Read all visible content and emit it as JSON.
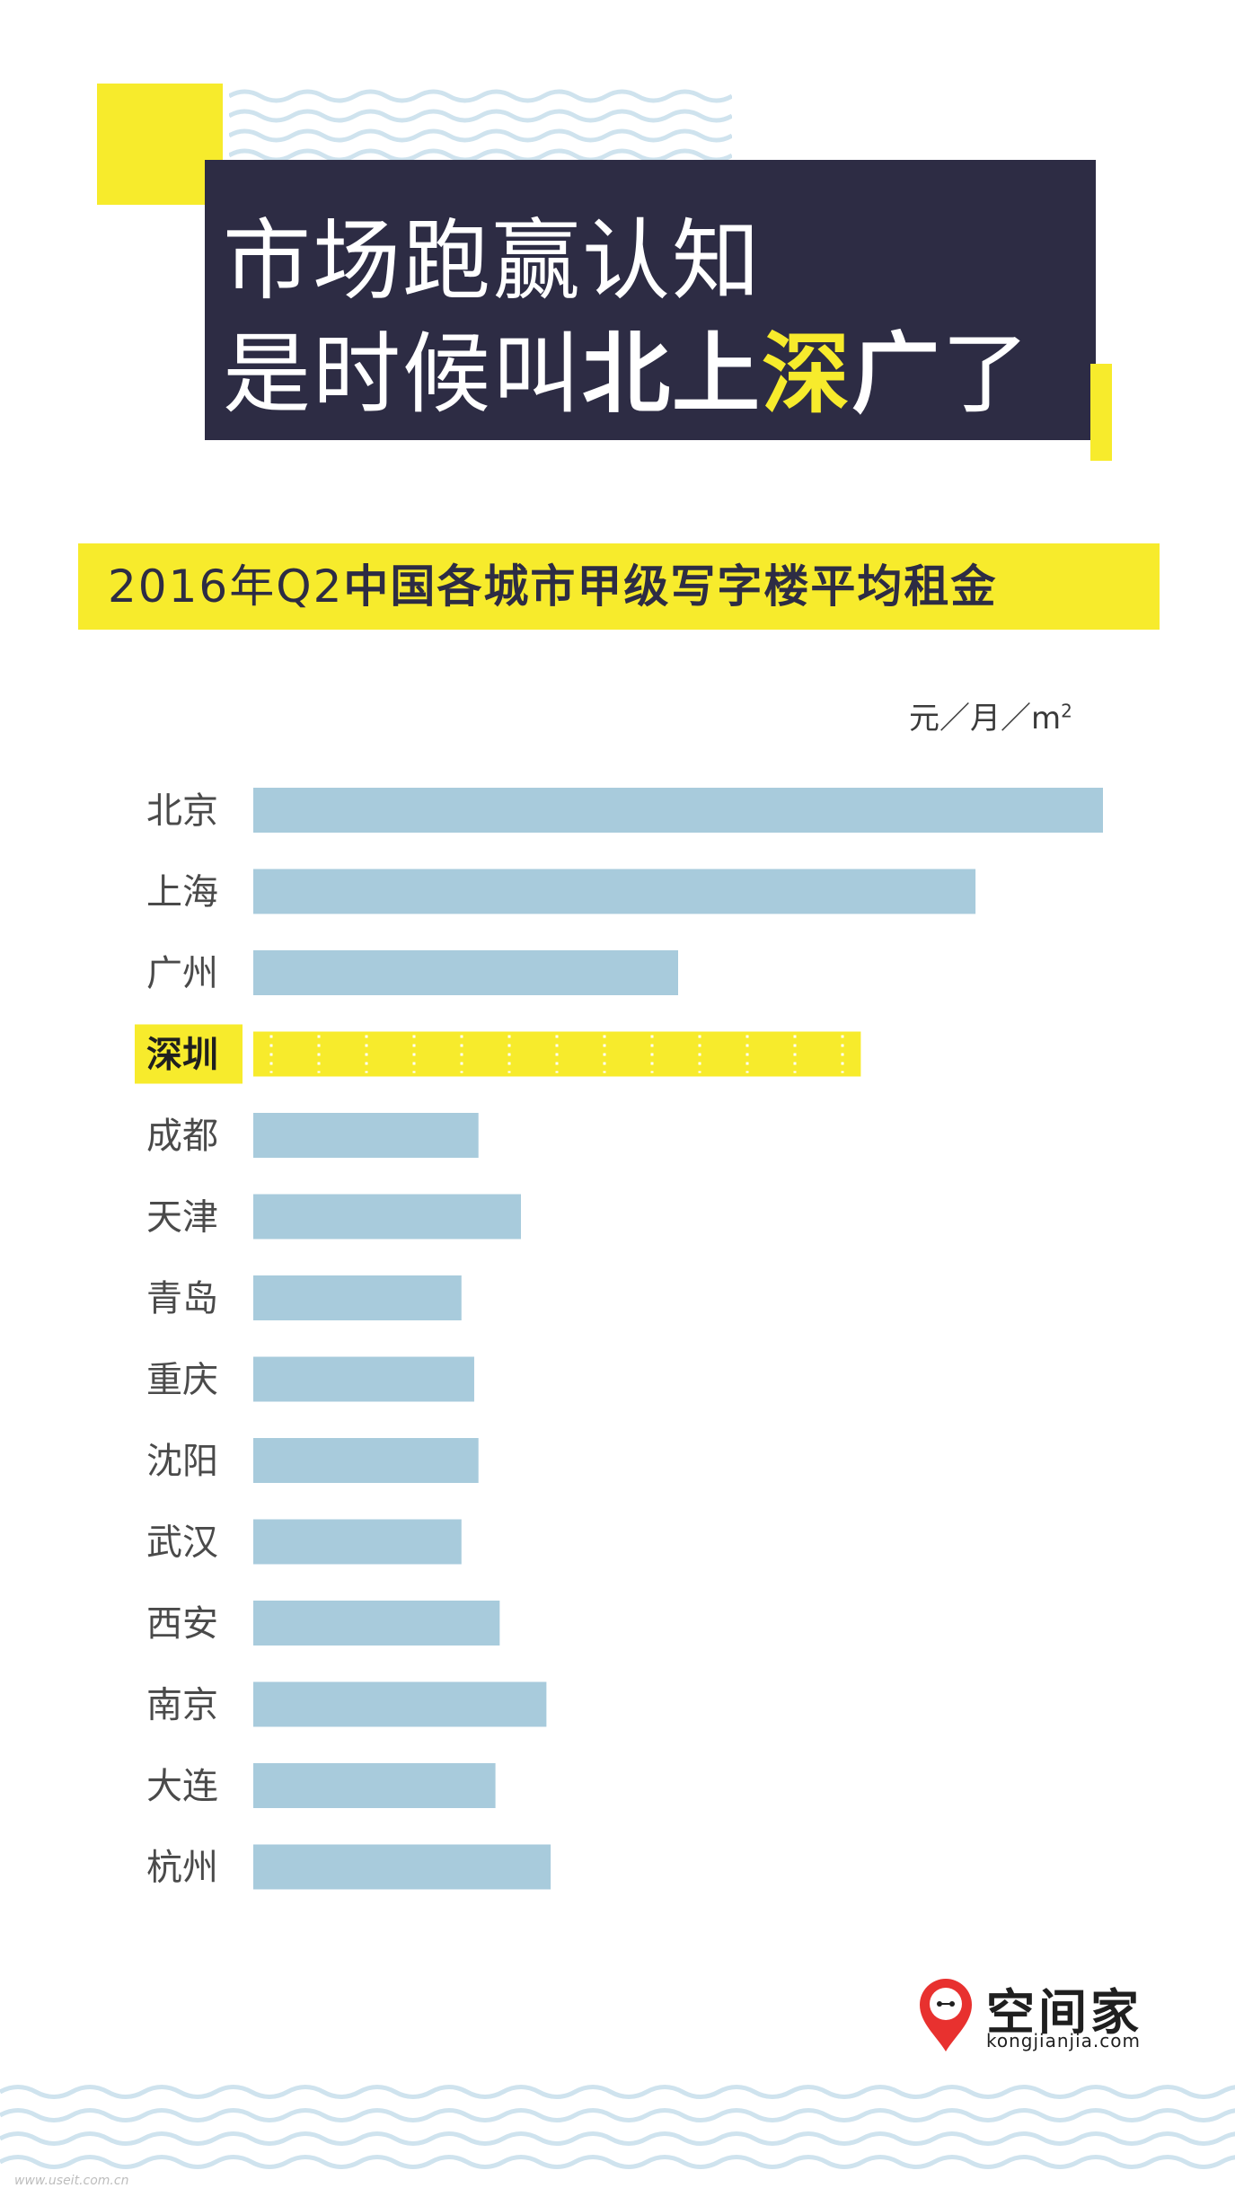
{
  "title": {
    "line1": "市场跑赢认知",
    "line2_prefix": "是时候叫",
    "line2_bold_a": "北上",
    "line2_highlight": "深",
    "line2_bold_b": "广",
    "line2_suffix": "了"
  },
  "subtitle": {
    "prefix": "2016年Q2",
    "bold": "中国各城市甲级写字楼平均租金"
  },
  "unit": {
    "text": "元／月／m",
    "sup": "2"
  },
  "colors": {
    "bar": "#a8cbdc",
    "highlight": "#f7eb2c",
    "title_bg": "#2d2c44",
    "accent": "#f7eb2c",
    "wave": "#cfe3ee"
  },
  "chart_data": {
    "type": "bar",
    "orientation": "horizontal",
    "title": "2016年Q2中国各城市甲级写字楼平均租金",
    "unit": "元／月／m²",
    "categories": [
      "北京",
      "上海",
      "广州",
      "深圳",
      "成都",
      "天津",
      "青岛",
      "重庆",
      "沈阳",
      "武汉",
      "西安",
      "南京",
      "大连",
      "杭州"
    ],
    "values": [
      100,
      85,
      50,
      71.5,
      26.5,
      31.5,
      24.5,
      26,
      26.5,
      24.5,
      29,
      34.5,
      28.5,
      35
    ],
    "highlight": "深圳",
    "value_note": "relative lengths, no value axis shown",
    "xlim": [
      0,
      100
    ],
    "grid": false,
    "legend": "none"
  },
  "logo": {
    "name": "空间家",
    "url": "kongjianjia.com",
    "icon": "location-pin-icon"
  },
  "watermark": "www.useit.com.cn"
}
